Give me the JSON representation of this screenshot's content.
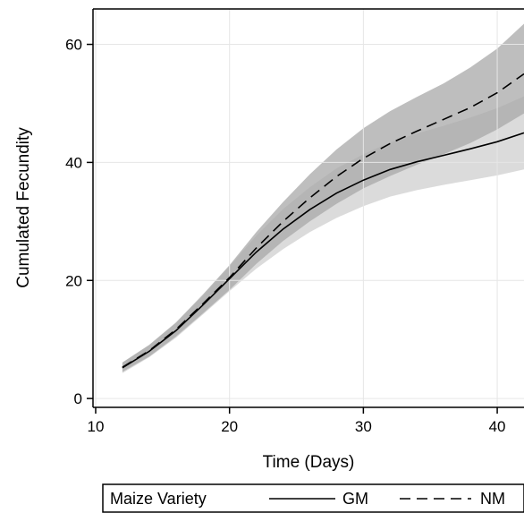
{
  "chart_data": {
    "type": "line",
    "title": "",
    "xlabel": "Time (Days)",
    "ylabel": "Cumulated Fecundity",
    "xlim": [
      9.8,
      42
    ],
    "ylim": [
      -1.5,
      66
    ],
    "xticks": [
      10,
      20,
      30,
      40
    ],
    "yticks": [
      0,
      20,
      40,
      60
    ],
    "grid": true,
    "legend": {
      "position": "bottom",
      "title": "Maize Variety",
      "entries": [
        "GM",
        "NM"
      ]
    },
    "series": [
      {
        "name": "GM",
        "line_style": "solid",
        "band_color": "#cfcfcf",
        "x": [
          12,
          14,
          16,
          18,
          20,
          22,
          24,
          26,
          28,
          30,
          32,
          34,
          36,
          38,
          40,
          42
        ],
        "y": [
          5.2,
          8.0,
          11.5,
          15.8,
          20.3,
          24.8,
          28.7,
          32.0,
          34.8,
          37.0,
          38.8,
          40.1,
          41.2,
          42.3,
          43.5,
          45.0
        ],
        "lower": [
          4.3,
          7.0,
          10.3,
          14.2,
          18.2,
          22.0,
          25.3,
          28.2,
          30.6,
          32.6,
          34.2,
          35.3,
          36.2,
          37.0,
          37.8,
          38.8
        ],
        "upper": [
          6.1,
          9.0,
          12.8,
          17.4,
          22.4,
          27.6,
          32.1,
          35.8,
          39.0,
          41.4,
          43.4,
          44.9,
          46.2,
          47.6,
          49.2,
          51.2
        ]
      },
      {
        "name": "NM",
        "line_style": "dashed",
        "band_color": "#a8a8a8",
        "x": [
          12,
          14,
          16,
          18,
          20,
          22,
          24,
          26,
          28,
          30,
          32,
          34,
          36,
          38,
          40,
          42
        ],
        "y": [
          5.3,
          8.1,
          11.7,
          16.0,
          20.5,
          25.5,
          30.0,
          34.0,
          37.6,
          40.7,
          43.2,
          45.3,
          47.3,
          49.3,
          51.8,
          55.0
        ],
        "lower": [
          4.5,
          7.1,
          10.5,
          14.4,
          18.4,
          22.8,
          26.7,
          30.0,
          33.0,
          35.6,
          37.7,
          39.6,
          41.4,
          43.3,
          45.6,
          48.3
        ],
        "upper": [
          6.1,
          9.1,
          12.9,
          17.6,
          22.6,
          28.2,
          33.3,
          38.0,
          42.2,
          45.8,
          48.7,
          51.1,
          53.4,
          56.1,
          59.3,
          63.5
        ]
      }
    ]
  }
}
